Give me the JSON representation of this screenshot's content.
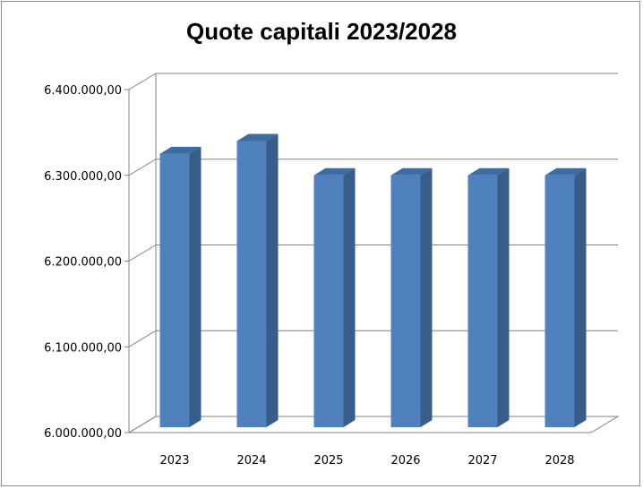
{
  "chart_data": {
    "type": "bar",
    "title": "Quote capitali 2023/2028",
    "categories": [
      "2023",
      "2024",
      "2025",
      "2026",
      "2027",
      "2028"
    ],
    "values": [
      6325000,
      6340000,
      6300000,
      6300000,
      6300000,
      6300000
    ],
    "ylim": [
      6000000,
      6400000
    ],
    "yticks": [
      6000000,
      6100000,
      6200000,
      6300000,
      6400000
    ],
    "ytick_labels": [
      "6.000.000,00",
      "6.100.000,00",
      "6.200.000,00",
      "6.300.000,00",
      "6.400.000,00"
    ],
    "grid": true,
    "style": "3d-columns",
    "colors": {
      "bar_front": "#4f81bd",
      "bar_side": "#385d8a",
      "bar_top": "#3e6ba0",
      "grid": "#808080"
    }
  }
}
